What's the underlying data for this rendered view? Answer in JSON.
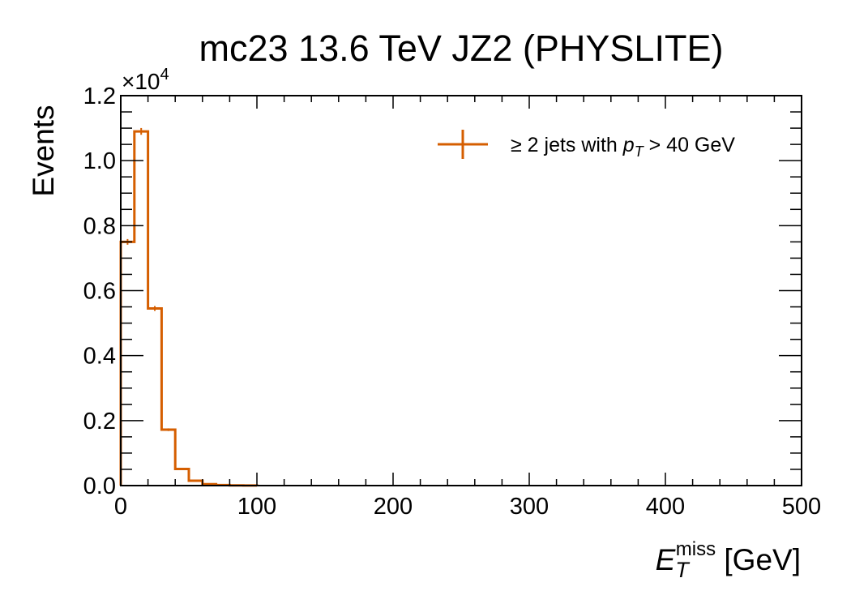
{
  "chart_data": {
    "type": "histogram",
    "title": "mc23 13.6 TeV JZ2 (PHYSLITE)",
    "xlabel": {
      "main": "E",
      "sub": "T",
      "sup": "miss",
      "unit": " [GeV]"
    },
    "ylabel": "Events",
    "xlim": [
      0,
      500
    ],
    "ylim": [
      0,
      12000
    ],
    "x_ticks": [
      0,
      100,
      200,
      300,
      400,
      500
    ],
    "x_tick_labels": [
      "0",
      "100",
      "200",
      "300",
      "400",
      "500"
    ],
    "y_ticks": [
      0,
      2000,
      4000,
      6000,
      8000,
      10000,
      12000
    ],
    "y_tick_labels": [
      "0.0",
      "0.2",
      "0.4",
      "0.6",
      "0.8",
      "1.0",
      "1.2"
    ],
    "y_multiplier": {
      "base": "×10",
      "exp": "4"
    },
    "bin_edges": [
      0,
      10,
      20,
      30,
      40,
      50,
      60,
      70,
      80,
      90,
      100
    ],
    "series": [
      {
        "name": "≥ 2 jets with pT > 40 GeV",
        "color": "#d55e00",
        "values": [
          7500,
          10900,
          5450,
          1720,
          510,
          150,
          45,
          15,
          5,
          2
        ],
        "errors": [
          87,
          104,
          74,
          41,
          23,
          12,
          7,
          4,
          2,
          1
        ]
      }
    ],
    "legend": {
      "placement": "top-right",
      "parts": {
        "pre": "≥ 2 jets with ",
        "p": "p",
        "sub": "T",
        "post": " > 40 GeV"
      }
    },
    "grid": false
  }
}
